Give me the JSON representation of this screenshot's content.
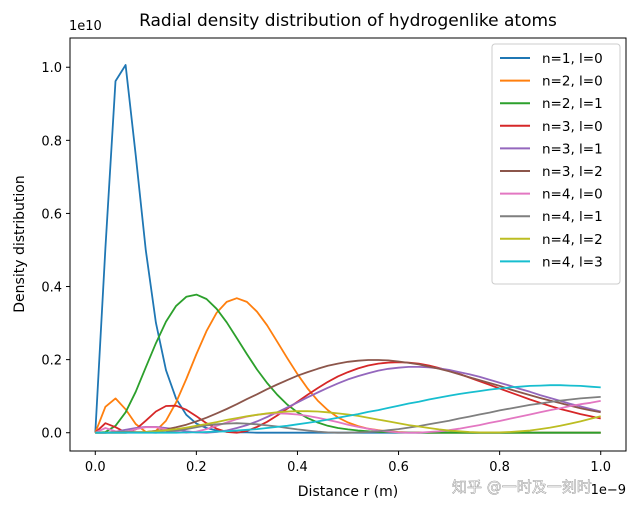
{
  "chart_data": {
    "type": "line",
    "title": "Radial density distribution of hydrogenlike atoms",
    "xlabel": "Distance r (m)",
    "ylabel": "Density distribution",
    "x_offset_label": "1e−9",
    "y_offset_label": "1e10",
    "xlim": [
      -0.05,
      1.05
    ],
    "ylim": [
      -0.05,
      1.08
    ],
    "xticks": [
      0.0,
      0.2,
      0.4,
      0.6,
      0.8,
      1.0
    ],
    "xtick_labels": [
      "0.0",
      "0.2",
      "0.4",
      "0.6",
      "0.8",
      "1.0"
    ],
    "yticks": [
      0.0,
      0.2,
      0.4,
      0.6,
      0.8,
      1.0
    ],
    "ytick_labels": [
      "0.0",
      "0.2",
      "0.4",
      "0.6",
      "0.8",
      "1.0"
    ],
    "legend_position": "top-right",
    "x": [
      0.0,
      0.02,
      0.04,
      0.06,
      0.08,
      0.1,
      0.12,
      0.14,
      0.16,
      0.18,
      0.2,
      0.22,
      0.24,
      0.26,
      0.28,
      0.3,
      0.32,
      0.34,
      0.36,
      0.38,
      0.4,
      0.42,
      0.44,
      0.46,
      0.48,
      0.5,
      0.52,
      0.54,
      0.56,
      0.58,
      0.6,
      0.62,
      0.64,
      0.66,
      0.68,
      0.7,
      0.72,
      0.74,
      0.76,
      0.78,
      0.8,
      0.82,
      0.84,
      0.86,
      0.88,
      0.9,
      0.92,
      0.94,
      0.96,
      0.98,
      1.0
    ],
    "series": [
      {
        "name": "n=1, l=0",
        "color": "#1f77b4",
        "values": [
          0.0,
          0.505,
          0.962,
          1.006,
          0.76,
          0.499,
          0.301,
          0.171,
          0.093,
          0.049,
          0.025,
          0.013,
          0.006,
          0.003,
          0.001,
          0.001,
          0.0,
          0.0,
          0.0,
          0.0,
          0.0,
          0.0,
          0.0,
          0.0,
          0.0,
          0.0,
          0.0,
          0.0,
          0.0,
          0.0,
          0.0,
          0.0,
          0.0,
          0.0,
          0.0,
          0.0,
          0.0,
          0.0,
          0.0,
          0.0,
          0.0,
          0.0,
          0.0,
          0.0,
          0.0,
          0.0,
          0.0,
          0.0,
          0.0,
          0.0,
          0.0
        ]
      },
      {
        "name": "n=2, l=0",
        "color": "#ff7f0e",
        "values": [
          0.0,
          0.071,
          0.094,
          0.064,
          0.024,
          0.002,
          0.005,
          0.033,
          0.083,
          0.147,
          0.215,
          0.278,
          0.328,
          0.358,
          0.368,
          0.358,
          0.331,
          0.294,
          0.249,
          0.204,
          0.16,
          0.121,
          0.088,
          0.062,
          0.042,
          0.028,
          0.018,
          0.011,
          0.007,
          0.004,
          0.002,
          0.001,
          0.001,
          0.0,
          0.0,
          0.0,
          0.0,
          0.0,
          0.0,
          0.0,
          0.0,
          0.0,
          0.0,
          0.0,
          0.0,
          0.0,
          0.0,
          0.0,
          0.0,
          0.0,
          0.0
        ]
      },
      {
        "name": "n=2, l=1",
        "color": "#2ca02c",
        "values": [
          0.0,
          0.002,
          0.019,
          0.056,
          0.112,
          0.179,
          0.245,
          0.304,
          0.347,
          0.372,
          0.378,
          0.366,
          0.339,
          0.302,
          0.259,
          0.215,
          0.173,
          0.136,
          0.104,
          0.077,
          0.056,
          0.04,
          0.028,
          0.019,
          0.013,
          0.009,
          0.006,
          0.004,
          0.002,
          0.002,
          0.001,
          0.001,
          0.0,
          0.0,
          0.0,
          0.0,
          0.0,
          0.0,
          0.0,
          0.0,
          0.0,
          0.0,
          0.0,
          0.0,
          0.0,
          0.0,
          0.0,
          0.0,
          0.0,
          0.0,
          0.0
        ]
      },
      {
        "name": "n=3, l=0",
        "color": "#d62728",
        "values": [
          0.0,
          0.026,
          0.015,
          0.001,
          0.009,
          0.033,
          0.058,
          0.073,
          0.074,
          0.063,
          0.045,
          0.026,
          0.011,
          0.002,
          0.0,
          0.005,
          0.016,
          0.03,
          0.047,
          0.066,
          0.085,
          0.104,
          0.122,
          0.139,
          0.154,
          0.166,
          0.176,
          0.184,
          0.189,
          0.192,
          0.193,
          0.192,
          0.189,
          0.184,
          0.177,
          0.169,
          0.161,
          0.151,
          0.141,
          0.131,
          0.121,
          0.111,
          0.101,
          0.091,
          0.082,
          0.073,
          0.065,
          0.058,
          0.051,
          0.045,
          0.039
        ]
      },
      {
        "name": "n=3, l=1",
        "color": "#9467bd",
        "values": [
          0.0,
          0.0,
          0.003,
          0.008,
          0.013,
          0.016,
          0.016,
          0.013,
          0.009,
          0.004,
          0.001,
          0.0,
          0.002,
          0.006,
          0.013,
          0.021,
          0.031,
          0.043,
          0.056,
          0.069,
          0.083,
          0.097,
          0.11,
          0.123,
          0.135,
          0.146,
          0.155,
          0.163,
          0.17,
          0.175,
          0.178,
          0.18,
          0.18,
          0.179,
          0.176,
          0.172,
          0.166,
          0.16,
          0.153,
          0.145,
          0.137,
          0.129,
          0.12,
          0.112,
          0.103,
          0.095,
          0.087,
          0.079,
          0.072,
          0.065,
          0.058
        ]
      },
      {
        "name": "n=3, l=2",
        "color": "#8c564b",
        "values": [
          0.0,
          0.0,
          0.0,
          0.0,
          0.001,
          0.002,
          0.005,
          0.009,
          0.015,
          0.022,
          0.031,
          0.041,
          0.053,
          0.065,
          0.078,
          0.092,
          0.105,
          0.119,
          0.132,
          0.144,
          0.156,
          0.166,
          0.175,
          0.183,
          0.189,
          0.194,
          0.197,
          0.199,
          0.199,
          0.198,
          0.195,
          0.191,
          0.187,
          0.181,
          0.175,
          0.168,
          0.16,
          0.152,
          0.144,
          0.136,
          0.128,
          0.119,
          0.111,
          0.103,
          0.095,
          0.088,
          0.081,
          0.074,
          0.067,
          0.061,
          0.056
        ]
      },
      {
        "name": "n=4, l=0",
        "color": "#e377c2",
        "values": [
          0.0,
          0.013,
          0.004,
          0.002,
          0.01,
          0.015,
          0.015,
          0.009,
          0.003,
          0.0,
          0.003,
          0.01,
          0.019,
          0.028,
          0.037,
          0.044,
          0.049,
          0.052,
          0.053,
          0.052,
          0.05,
          0.046,
          0.041,
          0.035,
          0.029,
          0.022,
          0.016,
          0.011,
          0.006,
          0.003,
          0.001,
          0.0,
          0.0,
          0.002,
          0.004,
          0.007,
          0.011,
          0.016,
          0.021,
          0.027,
          0.032,
          0.038,
          0.044,
          0.05,
          0.056,
          0.062,
          0.067,
          0.073,
          0.078,
          0.082,
          0.087
        ]
      },
      {
        "name": "n=4, l=1",
        "color": "#7f7f7f",
        "values": [
          0.0,
          0.0,
          0.002,
          0.003,
          0.002,
          0.001,
          0.0,
          0.002,
          0.006,
          0.01,
          0.015,
          0.02,
          0.023,
          0.025,
          0.026,
          0.025,
          0.023,
          0.02,
          0.017,
          0.013,
          0.009,
          0.006,
          0.003,
          0.001,
          0.0,
          0.0,
          0.001,
          0.002,
          0.004,
          0.007,
          0.01,
          0.014,
          0.018,
          0.023,
          0.028,
          0.033,
          0.039,
          0.044,
          0.05,
          0.055,
          0.061,
          0.066,
          0.071,
          0.076,
          0.08,
          0.084,
          0.088,
          0.091,
          0.094,
          0.096,
          0.098
        ]
      },
      {
        "name": "n=4, l=2",
        "color": "#bcbd22",
        "values": [
          0.0,
          0.0,
          0.0,
          0.0,
          0.001,
          0.002,
          0.004,
          0.007,
          0.01,
          0.014,
          0.019,
          0.024,
          0.029,
          0.035,
          0.04,
          0.045,
          0.049,
          0.053,
          0.056,
          0.058,
          0.059,
          0.059,
          0.058,
          0.056,
          0.053,
          0.05,
          0.046,
          0.041,
          0.036,
          0.031,
          0.026,
          0.021,
          0.017,
          0.013,
          0.009,
          0.006,
          0.004,
          0.002,
          0.001,
          0.001,
          0.001,
          0.002,
          0.004,
          0.006,
          0.01,
          0.014,
          0.019,
          0.025,
          0.031,
          0.038,
          0.045
        ]
      },
      {
        "name": "n=4, l=3",
        "color": "#17becf",
        "values": [
          0.0,
          0.0,
          0.0,
          0.0,
          0.0,
          0.0,
          0.0,
          0.0,
          0.0,
          0.001,
          0.001,
          0.002,
          0.003,
          0.004,
          0.006,
          0.008,
          0.01,
          0.013,
          0.016,
          0.019,
          0.023,
          0.027,
          0.031,
          0.036,
          0.041,
          0.046,
          0.051,
          0.057,
          0.062,
          0.068,
          0.074,
          0.08,
          0.085,
          0.091,
          0.096,
          0.101,
          0.106,
          0.11,
          0.114,
          0.118,
          0.121,
          0.124,
          0.126,
          0.128,
          0.129,
          0.13,
          0.13,
          0.129,
          0.128,
          0.126,
          0.124
        ]
      }
    ]
  },
  "watermark": "知乎 @一时及一刻时"
}
